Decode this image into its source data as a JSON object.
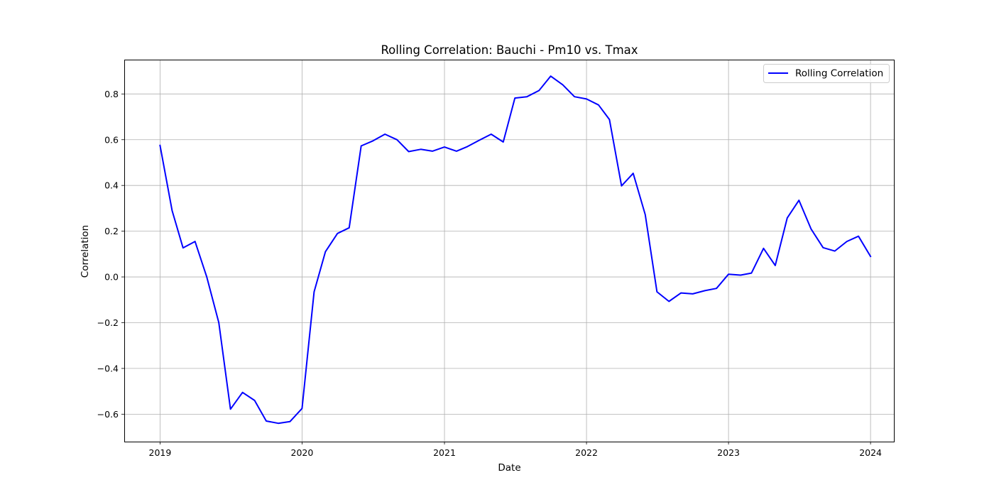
{
  "chart_data": {
    "type": "line",
    "title": "Rolling Correlation: Bauchi - Pm10 vs. Tmax",
    "xlabel": "Date",
    "ylabel": "Correlation",
    "grid": true,
    "legend_position": "top-right",
    "xlim": [
      "2018-10-01",
      "2024-03-01"
    ],
    "ylim": [
      -0.72,
      0.95
    ],
    "x_ticks": [
      "2019",
      "2020",
      "2021",
      "2022",
      "2023",
      "2024"
    ],
    "y_ticks": [
      "−0.6",
      "−0.4",
      "−0.2",
      "0.0",
      "0.2",
      "0.4",
      "0.6",
      "0.8"
    ],
    "series": [
      {
        "name": "Rolling Correlation",
        "color": "#0000ff",
        "x": [
          "2019-01-01",
          "2019-02-01",
          "2019-03-01",
          "2019-04-01",
          "2019-05-01",
          "2019-06-01",
          "2019-07-01",
          "2019-08-01",
          "2019-09-01",
          "2019-10-01",
          "2019-11-01",
          "2019-12-01",
          "2020-01-01",
          "2020-02-01",
          "2020-03-01",
          "2020-04-01",
          "2020-05-01",
          "2020-06-01",
          "2020-07-01",
          "2020-08-01",
          "2020-09-01",
          "2020-10-01",
          "2020-11-01",
          "2020-12-01",
          "2021-01-01",
          "2021-02-01",
          "2021-03-01",
          "2021-04-01",
          "2021-05-01",
          "2021-06-01",
          "2021-07-01",
          "2021-08-01",
          "2021-09-01",
          "2021-10-01",
          "2021-11-01",
          "2021-12-01",
          "2022-01-01",
          "2022-02-01",
          "2022-03-01",
          "2022-04-01",
          "2022-05-01",
          "2022-06-01",
          "2022-07-01",
          "2022-08-01",
          "2022-09-01",
          "2022-10-01",
          "2022-11-01",
          "2022-12-01",
          "2023-01-01",
          "2023-02-01",
          "2023-03-01",
          "2023-04-01",
          "2023-05-01",
          "2023-06-01",
          "2023-07-01",
          "2023-08-01",
          "2023-09-01",
          "2023-10-01",
          "2023-11-01",
          "2023-12-01",
          "2024-01-01"
        ],
        "values": [
          0.575,
          0.29,
          0.127,
          0.155,
          0.0,
          -0.2,
          -0.578,
          -0.505,
          -0.54,
          -0.63,
          -0.64,
          -0.632,
          -0.575,
          -0.065,
          0.11,
          0.19,
          0.215,
          0.573,
          0.595,
          0.624,
          0.6,
          0.548,
          0.558,
          0.55,
          0.568,
          0.55,
          0.57,
          0.598,
          0.624,
          0.59,
          0.782,
          0.788,
          0.815,
          0.878,
          0.84,
          0.788,
          0.778,
          0.752,
          0.688,
          0.398,
          0.453,
          0.272,
          -0.065,
          -0.107,
          -0.07,
          -0.074,
          -0.06,
          -0.05,
          0.012,
          0.008,
          0.017,
          0.125,
          0.05,
          0.258,
          0.335,
          0.21,
          0.128,
          0.113,
          0.155,
          0.178,
          0.09
        ]
      }
    ]
  }
}
